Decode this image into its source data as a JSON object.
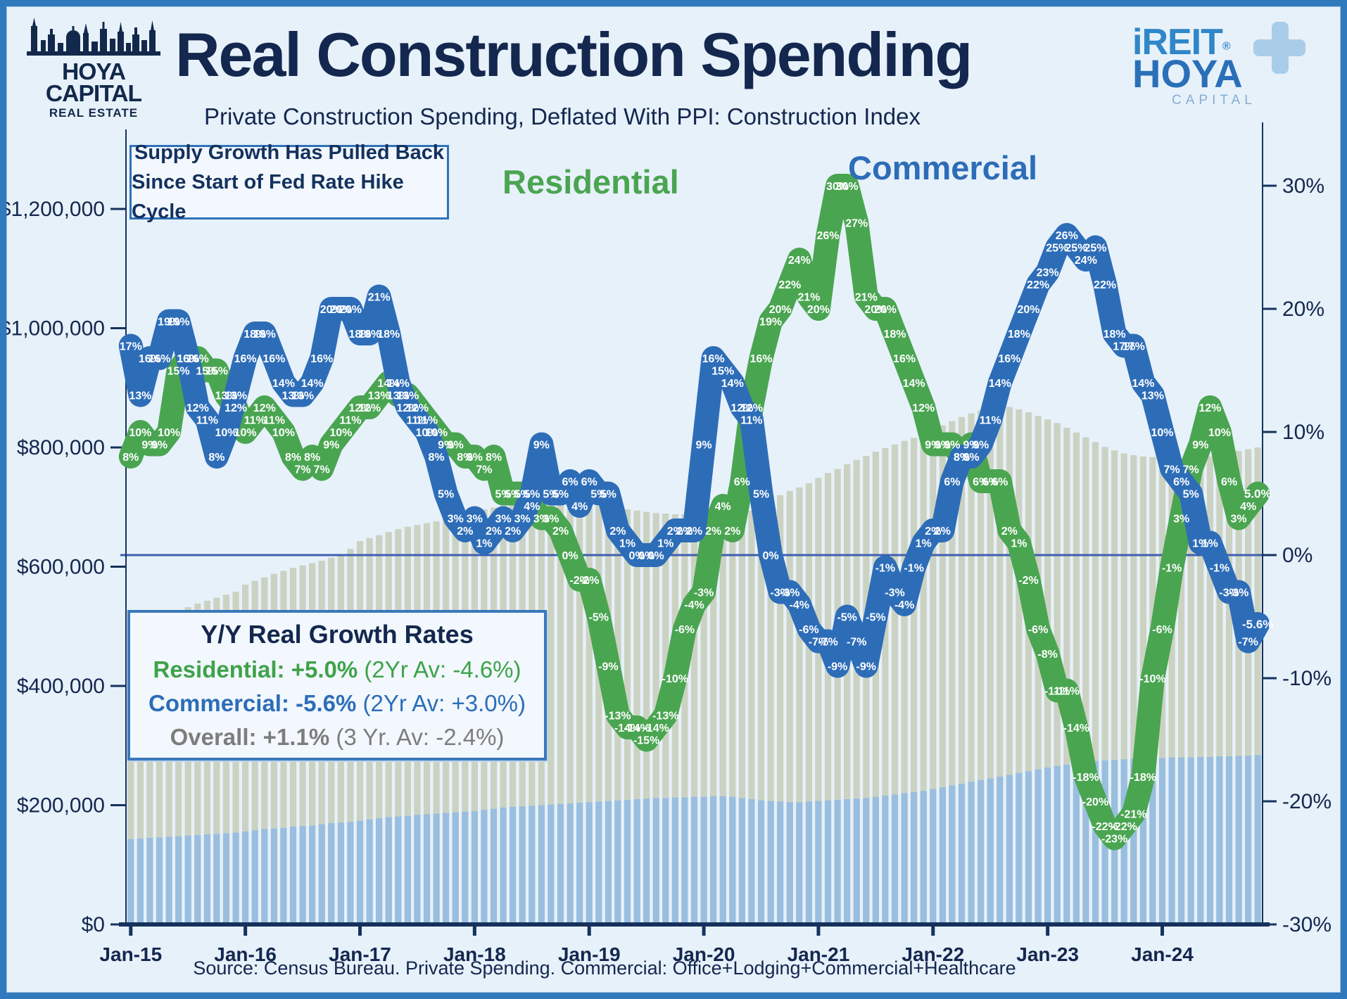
{
  "header": {
    "title": "Real Construction Spending",
    "subtitle": "Private Construction Spending, Deflated With PPI: Construction Index"
  },
  "logos": {
    "left": {
      "name": "HOYA CAPITAL",
      "tagline": "REAL ESTATE"
    },
    "right": {
      "brand": "iREIT",
      "reg": "®",
      "name": "HOYA",
      "sub": "CAPITAL"
    }
  },
  "annotation": {
    "line1": "Supply Growth Has Pulled Back",
    "line2": "Since Start of Fed Rate Hike Cycle"
  },
  "series_floating_labels": {
    "residential": "Residential",
    "commercial": "Commercial"
  },
  "legend": {
    "title": "Y/Y Real Growth Rates",
    "rows": [
      {
        "label": "Residential:",
        "value": "+5.0%",
        "avg": "(2Yr Av: -4.6%)",
        "color_key": "green"
      },
      {
        "label": "Commercial:",
        "value": "-5.6%",
        "avg": "(2Yr Av: +3.0%)",
        "color_key": "blue"
      },
      {
        "label": "Overall:",
        "value": "+1.1%",
        "avg": "(3 Yr. Av: -2.4%)",
        "color_key": "gray"
      }
    ]
  },
  "source": "Source: Census Bureau. Private Spending. Commercial: Office+Lodging+Commercial+Healthcare",
  "colors": {
    "residential": "#4aa551",
    "commercial": "#2d6db8",
    "navy_text": "#14274e",
    "zero_line": "#3f5fb0",
    "axis": "#16325c",
    "bar_total": "#c9cebb",
    "bar_commercial": "#94bbe2",
    "frame_blue": "#3079bd"
  },
  "chart_data": {
    "type": "line",
    "x_start": "Jan-15",
    "x_end": "Nov-24",
    "x_ticks": [
      "Jan-15",
      "Jan-16",
      "Jan-17",
      "Jan-18",
      "Jan-19",
      "Jan-20",
      "Jan-21",
      "Jan-22",
      "Jan-23",
      "Jan-24"
    ],
    "left_axis_ticks": [
      "$1,200,000",
      "$1,000,000",
      "$800,000",
      "$600,000",
      "$400,000",
      "$200,000",
      "$0"
    ],
    "right_axis_ticks": [
      "30%",
      "20%",
      "10%",
      "0%",
      "-10%",
      "-20%",
      "-30%"
    ],
    "right_axis_range": [
      -30,
      30
    ],
    "left_axis_range_dollars": [
      0,
      1200000
    ],
    "grid": "zero-line-only",
    "legend_position": "bottom-left-box",
    "series": [
      {
        "name": "Residential",
        "color": "#4aa551",
        "last_label": "5.0%",
        "values": [
          8,
          10,
          9,
          9,
          10,
          15,
          16,
          16,
          15,
          15,
          13,
          12,
          10,
          11,
          12,
          11,
          10,
          8,
          7,
          8,
          7,
          9,
          10,
          11,
          12,
          12,
          13,
          14,
          13,
          13,
          12,
          11,
          10,
          9,
          9,
          8,
          8,
          7,
          8,
          5,
          5,
          5,
          4,
          3,
          3,
          2,
          0,
          -2,
          -2,
          -5,
          -9,
          -13,
          -14,
          -14,
          -15,
          -14,
          -13,
          -10,
          -6,
          -4,
          -3,
          2,
          4,
          2,
          6,
          12,
          16,
          19,
          20,
          22,
          24,
          21,
          20,
          26,
          30,
          30,
          27,
          21,
          20,
          20,
          18,
          16,
          14,
          12,
          9,
          9,
          9,
          8,
          9,
          6,
          6,
          6,
          2,
          1,
          -2,
          -6,
          -8,
          -11,
          -11,
          -14,
          -18,
          -20,
          -22,
          -23,
          -22,
          -21,
          -18,
          -10,
          -6,
          -1,
          3,
          7,
          9,
          12,
          10,
          6,
          3,
          4,
          5
        ]
      },
      {
        "name": "Commercial",
        "color": "#2d6db8",
        "last_label": "-5.6%",
        "values": [
          17,
          13,
          16,
          16,
          19,
          19,
          16,
          12,
          11,
          8,
          10,
          13,
          16,
          18,
          18,
          16,
          14,
          13,
          13,
          14,
          16,
          20,
          20,
          20,
          18,
          18,
          21,
          18,
          14,
          12,
          11,
          10,
          8,
          5,
          3,
          2,
          3,
          1,
          2,
          3,
          2,
          3,
          5,
          9,
          5,
          5,
          6,
          4,
          6,
          5,
          5,
          2,
          1,
          0,
          0,
          0,
          1,
          2,
          2,
          2,
          9,
          16,
          15,
          14,
          12,
          11,
          5,
          0,
          -3,
          -3,
          -4,
          -6,
          -7,
          -7,
          -9,
          -5,
          -7,
          -9,
          -5,
          -1,
          -3,
          -4,
          -1,
          1,
          2,
          2,
          6,
          8,
          8,
          9,
          11,
          14,
          16,
          18,
          20,
          22,
          23,
          25,
          26,
          25,
          24,
          25,
          22,
          18,
          17,
          17,
          14,
          13,
          10,
          7,
          6,
          5,
          1,
          1,
          -1,
          -3,
          -3,
          -7,
          -5.6
        ]
      }
    ],
    "bars": [
      {
        "name": "total-private-spending-level",
        "color": "#c9cebb",
        "unit": "USD thousands (left axis, est. from pixels)",
        "values": [
          500,
          505,
          510,
          515,
          520,
          526,
          532,
          538,
          543,
          548,
          553,
          558,
          570,
          576,
          582,
          588,
          593,
          598,
          602,
          606,
          610,
          615,
          620,
          630,
          643,
          648,
          653,
          658,
          663,
          667,
          670,
          673,
          676,
          680,
          684,
          688,
          693,
          696,
          699,
          702,
          704,
          706,
          708,
          709,
          710,
          710,
          708,
          706,
          704,
          702,
          700,
          698,
          696,
          694,
          692,
          690,
          689,
          688,
          688,
          689,
          690,
          691,
          688,
          682,
          686,
          694,
          703,
          712,
          720,
          727,
          733,
          740,
          749,
          757,
          764,
          772,
          779,
          786,
          793,
          799,
          805,
          811,
          816,
          820,
          829,
          837,
          844,
          851,
          857,
          862,
          866,
          869,
          868,
          864,
          859,
          853,
          847,
          841,
          833,
          825,
          817,
          809,
          801,
          795,
          790,
          787,
          785,
          784,
          782,
          780,
          779,
          780,
          782,
          785,
          788,
          791,
          794,
          797,
          800
        ]
      },
      {
        "name": "commercial-spending-level",
        "color": "#94bbe2",
        "unit": "USD thousands (left axis, est. from pixels)",
        "values": [
          143,
          144,
          145,
          146,
          147,
          148,
          149,
          150,
          151,
          152,
          153,
          154,
          156,
          158,
          160,
          161,
          162,
          164,
          165,
          166,
          168,
          170,
          171,
          172,
          174,
          176,
          178,
          180,
          181,
          182,
          184,
          185,
          186,
          187,
          188,
          189,
          190,
          192,
          194,
          196,
          197,
          198,
          199,
          200,
          201,
          202,
          203,
          204,
          205,
          206,
          207,
          208,
          209,
          210,
          211,
          212,
          212,
          213,
          213,
          214,
          214,
          215,
          215,
          214,
          212,
          210,
          208,
          207,
          206,
          205,
          205,
          206,
          207,
          208,
          209,
          210,
          211,
          212,
          214,
          216,
          218,
          220,
          222,
          224,
          227,
          230,
          233,
          236,
          239,
          242,
          245,
          248,
          251,
          254,
          257,
          260,
          263,
          266,
          268,
          270,
          272,
          274,
          275,
          276,
          277,
          278,
          278,
          279,
          279,
          280,
          280,
          280,
          281,
          281,
          282,
          282,
          283,
          283,
          284
        ]
      }
    ]
  }
}
